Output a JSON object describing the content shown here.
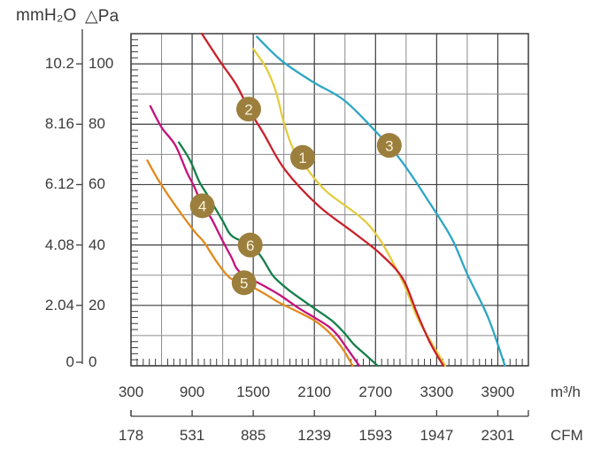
{
  "chart_data": {
    "type": "line",
    "title": "",
    "legend": "numbered circular badges placed on each curve",
    "grid": true,
    "x_axis": {
      "unit": "m³/h",
      "tick_values": [
        300,
        900,
        1500,
        2100,
        2700,
        3300,
        3900
      ],
      "range": [
        300,
        4200
      ],
      "grid_step": 300,
      "minor_tick_step": 60
    },
    "x_axis_secondary": {
      "unit": "CFM",
      "tick_labels": [
        "178",
        "531",
        "885",
        "1239",
        "1593",
        "1947",
        "2301"
      ]
    },
    "y_axis": {
      "unit": "△Pa",
      "tick_values": [
        0,
        20,
        40,
        60,
        80,
        100
      ],
      "range": [
        0,
        110
      ],
      "grid_step": 10,
      "minor_tick_step": 2
    },
    "y_axis_secondary": {
      "unit": "mmH₂O",
      "tick_labels": [
        "0",
        "2.04",
        "4.08",
        "6.12",
        "8.16",
        "10.2"
      ]
    },
    "badge_style": {
      "fill": "#9c7f3c",
      "text_color": "#f8f1dc"
    },
    "series": [
      {
        "badge": "1",
        "color": "#e3cc3f",
        "badge_at": [
          1985,
          69
        ],
        "points": [
          [
            1500,
            105
          ],
          [
            1620,
            99
          ],
          [
            1700,
            93
          ],
          [
            1745,
            88
          ],
          [
            1805,
            80
          ],
          [
            1890,
            72
          ],
          [
            1990,
            67
          ],
          [
            2210,
            58
          ],
          [
            2650,
            46
          ],
          [
            2950,
            29
          ],
          [
            3110,
            16
          ],
          [
            3260,
            7
          ],
          [
            3385,
            0
          ]
        ]
      },
      {
        "badge": "2",
        "color": "#c9202a",
        "badge_at": [
          1455,
          85
        ],
        "points": [
          [
            995,
            110
          ],
          [
            1170,
            101
          ],
          [
            1335,
            93
          ],
          [
            1455,
            85
          ],
          [
            1600,
            77
          ],
          [
            1810,
            65
          ],
          [
            2140,
            53
          ],
          [
            2490,
            44
          ],
          [
            2750,
            37
          ],
          [
            2965,
            29
          ],
          [
            3100,
            18
          ],
          [
            3230,
            8
          ],
          [
            3365,
            0
          ]
        ]
      },
      {
        "badge": "3",
        "color": "#2ea6c4",
        "badge_at": [
          2835,
          73
        ],
        "points": [
          [
            1535,
            109
          ],
          [
            1780,
            101
          ],
          [
            2085,
            94
          ],
          [
            2390,
            88
          ],
          [
            2690,
            78
          ],
          [
            2950,
            68
          ],
          [
            3230,
            54
          ],
          [
            3450,
            42
          ],
          [
            3605,
            30
          ],
          [
            3805,
            16
          ],
          [
            3970,
            0
          ]
        ]
      },
      {
        "badge": "4",
        "color": "#c4127c",
        "badge_at": [
          1000,
          53
        ],
        "points": [
          [
            490,
            86
          ],
          [
            600,
            79
          ],
          [
            735,
            73
          ],
          [
            850,
            64
          ],
          [
            925,
            59
          ],
          [
            1000,
            53
          ],
          [
            1085,
            49
          ],
          [
            1190,
            42
          ],
          [
            1285,
            36
          ],
          [
            1370,
            31
          ],
          [
            1630,
            26
          ],
          [
            1780,
            23
          ],
          [
            1950,
            19
          ],
          [
            2100,
            16
          ],
          [
            2240,
            13
          ],
          [
            2330,
            10
          ],
          [
            2415,
            6
          ],
          [
            2540,
            0
          ]
        ]
      },
      {
        "badge": "5",
        "color": "#e18a1e",
        "badge_at": [
          1410,
          27.5
        ],
        "points": [
          [
            460,
            68
          ],
          [
            560,
            62
          ],
          [
            675,
            56
          ],
          [
            800,
            50
          ],
          [
            935,
            44
          ],
          [
            1015,
            41
          ],
          [
            1150,
            34
          ],
          [
            1275,
            29
          ],
          [
            1410,
            27.5
          ],
          [
            1605,
            24
          ],
          [
            1750,
            21
          ],
          [
            1930,
            18
          ],
          [
            2100,
            15
          ],
          [
            2215,
            12
          ],
          [
            2300,
            9
          ],
          [
            2390,
            5
          ],
          [
            2475,
            0
          ]
        ]
      },
      {
        "badge": "6",
        "color": "#157f4a",
        "badge_at": [
          1470,
          40
        ],
        "points": [
          [
            770,
            74
          ],
          [
            880,
            68
          ],
          [
            970,
            61
          ],
          [
            1060,
            56
          ],
          [
            1200,
            48
          ],
          [
            1290,
            43
          ],
          [
            1470,
            40
          ],
          [
            1580,
            36
          ],
          [
            1690,
            30
          ],
          [
            1780,
            27
          ],
          [
            1890,
            24
          ],
          [
            2100,
            19
          ],
          [
            2270,
            15
          ],
          [
            2390,
            11
          ],
          [
            2490,
            7
          ],
          [
            2590,
            4
          ],
          [
            2720,
            0
          ]
        ]
      }
    ]
  }
}
